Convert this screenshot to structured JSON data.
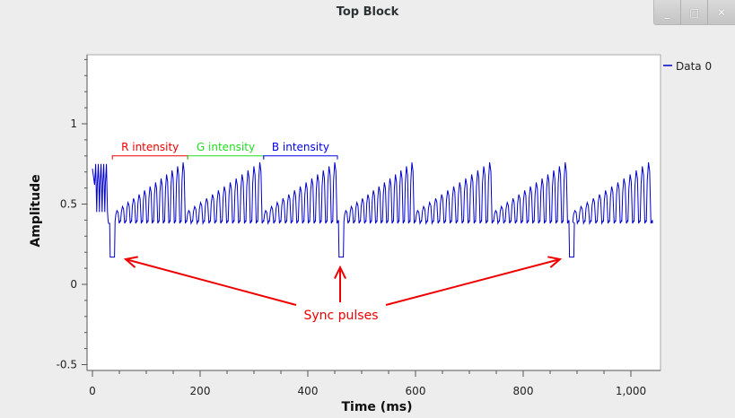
{
  "window": {
    "title": "Top Block",
    "buttons": {
      "minimize": "_",
      "maximize": "□",
      "close": "✕"
    }
  },
  "plot": {
    "legend_label": "Data 0",
    "annotations": {
      "r_intensity": "R intensity",
      "g_intensity": "G intensity",
      "b_intensity": "B intensity",
      "sync_pulses": "Sync pulses"
    },
    "colors": {
      "trace": "#0000cc",
      "annotation": "#ee0000",
      "green": "#22dd22",
      "blue": "#0000ee"
    }
  },
  "chart_data": {
    "type": "line",
    "xlabel": "Time (ms)",
    "ylabel": "Amplitude",
    "xlim": [
      -5,
      1045
    ],
    "ylim": [
      -0.5,
      1.45
    ],
    "x_ticks": [
      0,
      200,
      400,
      600,
      800,
      1000
    ],
    "x_tick_labels": [
      "0",
      "200",
      "400",
      "600",
      "800",
      "1,000"
    ],
    "y_ticks": [
      -0.5,
      0,
      0.5,
      1
    ],
    "y_tick_labels": [
      "-0.5",
      "0",
      "0.5",
      "1"
    ],
    "grid": false,
    "legend_placement": "right",
    "series": [
      {
        "name": "Data 0",
        "color": "#0000cc",
        "description_points": {
          "sync_pulse_times_ms": [
            32,
            457,
            885
          ],
          "sync_level": 0.17,
          "baseline": 0.38,
          "segment_starts_ms": [
            42,
            175,
            318,
            467,
            600,
            745,
            892
          ],
          "segment_ends_ms": [
            175,
            318,
            457,
            600,
            745,
            885,
            1040
          ],
          "pulses_per_segment": 13,
          "peak_min": 0.46,
          "peak_max": 0.76
        }
      }
    ],
    "brackets": [
      {
        "label": "R intensity",
        "x_start": 37,
        "x_end": 177,
        "y": 0.8
      },
      {
        "label": "G intensity",
        "x_start": 177,
        "x_end": 318,
        "y": 0.8
      },
      {
        "label": "B intensity",
        "x_start": 318,
        "x_end": 455,
        "y": 0.8
      }
    ]
  }
}
